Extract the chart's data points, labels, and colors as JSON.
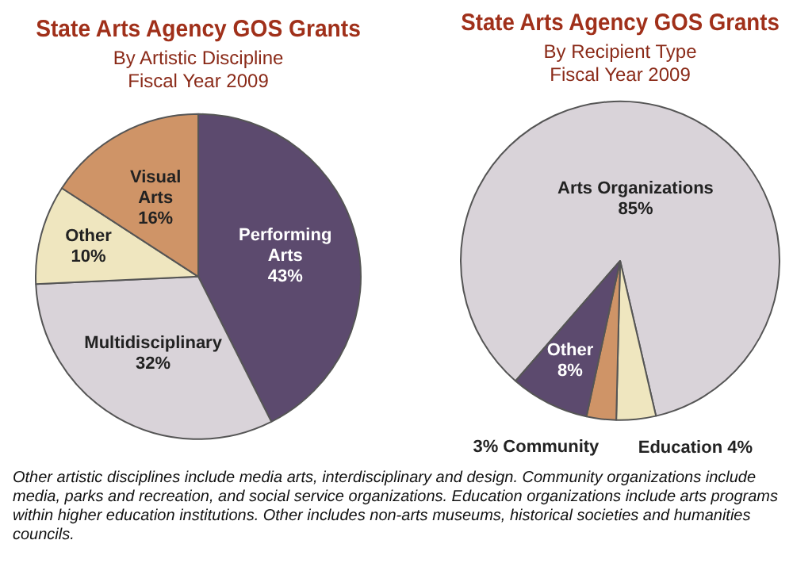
{
  "chart_data": [
    {
      "type": "pie",
      "title": "State Arts Agency GOS Grants",
      "subtitle": "By Artistic Discipline\nFiscal Year 2009",
      "categories": [
        "Performing Arts",
        "Multidisciplinary",
        "Other",
        "Visual Arts"
      ],
      "values": [
        43,
        32,
        10,
        16
      ],
      "value_labels": [
        "43%",
        "32%",
        "10%",
        "16%"
      ],
      "colors": [
        "#5c4a6e",
        "#d9d3d9",
        "#efe6bf",
        "#cf9467"
      ],
      "legend": false,
      "annotations": [
        "Other artistic disciplines include media arts, interdisciplinary and design. Community organizations include media, parks and recreation, and social service organizations. Education organizations include arts programs within higher education institutions. Other includes non-arts museums, historical societies and humanities councils."
      ]
    },
    {
      "type": "pie",
      "title": "State Arts Agency GOS Grants",
      "subtitle": "By Recipient Type\nFiscal Year 2009",
      "categories": [
        "Arts Organizations",
        "Education",
        "Community",
        "Other"
      ],
      "values": [
        85,
        4,
        3,
        8
      ],
      "value_labels": [
        "85%",
        "4%",
        "3%",
        "8%"
      ],
      "colors": [
        "#d9d3d9",
        "#efe6bf",
        "#cf9467",
        "#5c4a6e"
      ],
      "legend": false
    }
  ]
}
